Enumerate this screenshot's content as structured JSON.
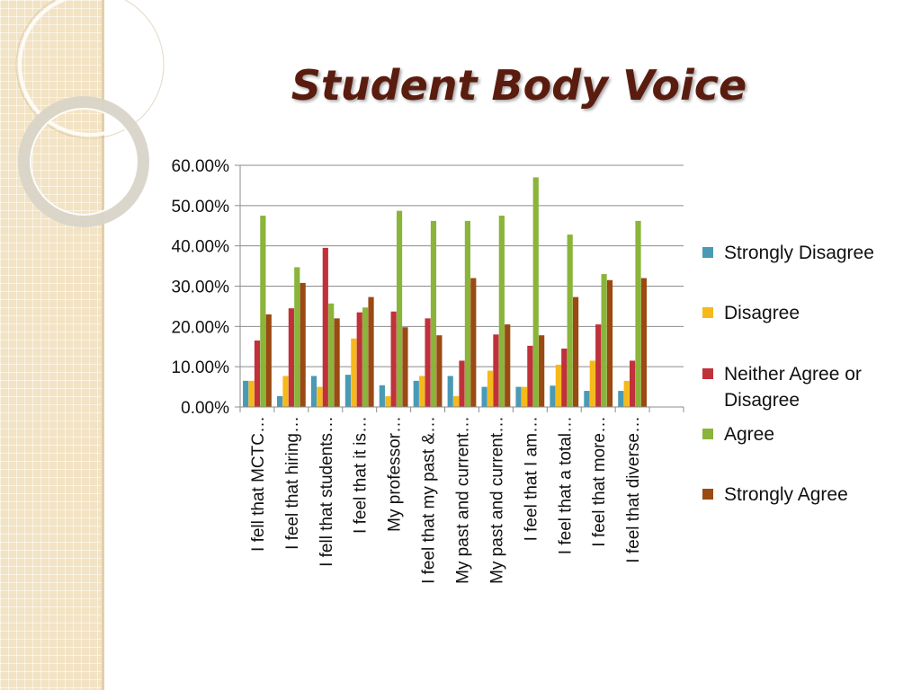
{
  "slide": {
    "title": "Student Body Voice"
  },
  "theme": {
    "sidebar_color": "#f2e3c4",
    "title_color": "#5a1c0e"
  },
  "chart_data": {
    "type": "bar",
    "title": "",
    "xlabel": "",
    "ylabel": "",
    "ylim": [
      0,
      0.6
    ],
    "y_ticks": [
      0,
      0.1,
      0.2,
      0.3,
      0.4,
      0.5,
      0.6
    ],
    "y_tick_labels": [
      "0.00%",
      "10.00%",
      "20.00%",
      "30.00%",
      "40.00%",
      "50.00%",
      "60.00%"
    ],
    "grid": true,
    "legend_position": "right",
    "categories": [
      "I fell that MCTC…",
      "I feel that hiring…",
      "I fell that students…",
      "I feel that it is…",
      "My professor…",
      "I feel that my past &…",
      "My past and current…",
      "My past and current…",
      "I feel that I am…",
      "I feel that a total…",
      "I feel that more…",
      "I feel that diverse…"
    ],
    "series": [
      {
        "name": "Strongly Disagree",
        "color": "#4a9ab5",
        "values": [
          0.065,
          0.027,
          0.077,
          0.08,
          0.054,
          0.065,
          0.077,
          0.05,
          0.05,
          0.053,
          0.04,
          0.04
        ]
      },
      {
        "name": "Disagree",
        "color": "#f5b91a",
        "values": [
          0.065,
          0.077,
          0.05,
          0.17,
          0.027,
          0.077,
          0.027,
          0.09,
          0.05,
          0.105,
          0.115,
          0.065
        ]
      },
      {
        "name": "Neither Agree or Disagree",
        "color": "#c0313a",
        "values": [
          0.165,
          0.245,
          0.395,
          0.235,
          0.237,
          0.22,
          0.115,
          0.18,
          0.152,
          0.145,
          0.205,
          0.115
        ]
      },
      {
        "name": "Agree",
        "color": "#8ab43a",
        "values": [
          0.475,
          0.347,
          0.257,
          0.247,
          0.487,
          0.462,
          0.462,
          0.475,
          0.57,
          0.428,
          0.33,
          0.462
        ]
      },
      {
        "name": "Strongly Agree",
        "color": "#9a4a12",
        "values": [
          0.23,
          0.308,
          0.22,
          0.273,
          0.198,
          0.178,
          0.32,
          0.205,
          0.178,
          0.273,
          0.315,
          0.32
        ]
      }
    ]
  }
}
